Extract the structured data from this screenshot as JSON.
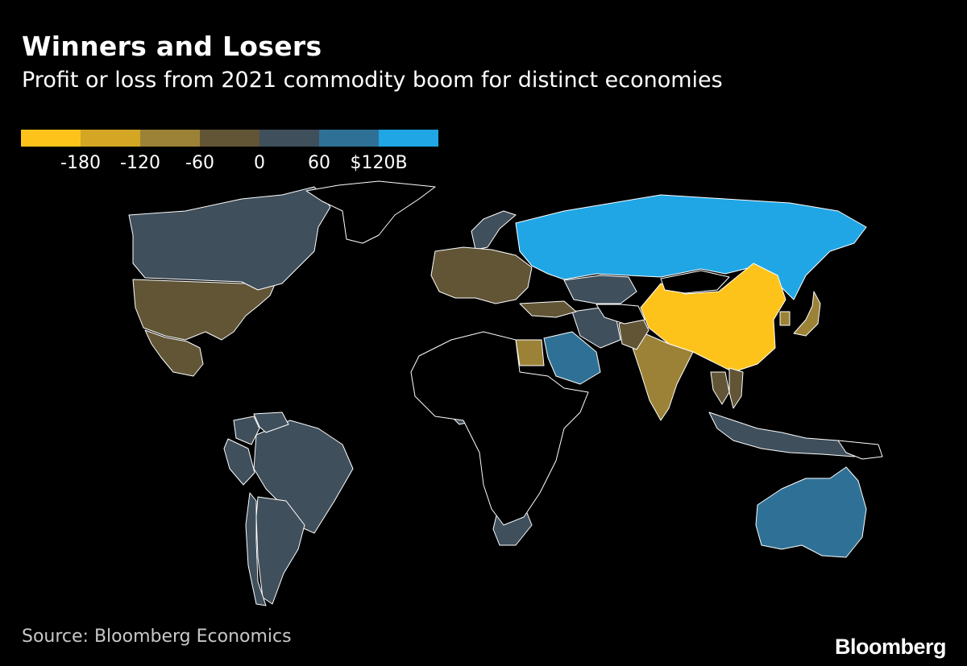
{
  "title": "Winners and Losers",
  "subtitle": "Profit or loss from 2021 commodity boom for distinct economies",
  "legend": {
    "colors": [
      "#fdc31a",
      "#d4a624",
      "#9c8237",
      "#615536",
      "#3f4f5c",
      "#2f7196",
      "#20a6e4"
    ],
    "ticks": [
      "-180",
      "-120",
      "-60",
      "0",
      "60",
      "$120B"
    ]
  },
  "source": "Source: Bloomberg Economics",
  "brand": "Bloomberg",
  "map_data": {
    "type": "choropleth",
    "unit": "$B",
    "scale_breaks": [
      -180,
      -120,
      -60,
      0,
      60,
      120
    ],
    "regions": [
      {
        "name": "Russia",
        "bucket": 6
      },
      {
        "name": "China",
        "bucket": 0
      },
      {
        "name": "India",
        "bucket": 2
      },
      {
        "name": "United States",
        "bucket": 3
      },
      {
        "name": "Canada",
        "bucket": 4
      },
      {
        "name": "Mexico",
        "bucket": 3
      },
      {
        "name": "Brazil",
        "bucket": 4
      },
      {
        "name": "Argentina",
        "bucket": 4
      },
      {
        "name": "Chile",
        "bucket": 4
      },
      {
        "name": "Peru",
        "bucket": 4
      },
      {
        "name": "Colombia",
        "bucket": 4
      },
      {
        "name": "Venezuela",
        "bucket": 4
      },
      {
        "name": "Australia",
        "bucket": 5
      },
      {
        "name": "Saudi Arabia",
        "bucket": 5
      },
      {
        "name": "Iran",
        "bucket": 4
      },
      {
        "name": "Kazakhstan",
        "bucket": 4
      },
      {
        "name": "Indonesia",
        "bucket": 4
      },
      {
        "name": "Japan",
        "bucket": 2
      },
      {
        "name": "South Korea",
        "bucket": 2
      },
      {
        "name": "Turkey",
        "bucket": 3
      },
      {
        "name": "Egypt",
        "bucket": 2
      },
      {
        "name": "Pakistan",
        "bucket": 3
      },
      {
        "name": "Thailand",
        "bucket": 3
      },
      {
        "name": "Vietnam",
        "bucket": 3
      },
      {
        "name": "South Africa",
        "bucket": 4
      },
      {
        "name": "Nigeria",
        "bucket": 4
      },
      {
        "name": "Norway",
        "bucket": 4
      },
      {
        "name": "Europe (West)",
        "bucket": 3
      },
      {
        "name": "Greenland",
        "bucket": null
      },
      {
        "name": "Africa (other)",
        "bucket": null
      },
      {
        "name": "Mongolia",
        "bucket": null
      },
      {
        "name": "Central Asia (other)",
        "bucket": null
      },
      {
        "name": "Papua New Guinea",
        "bucket": null
      }
    ]
  }
}
